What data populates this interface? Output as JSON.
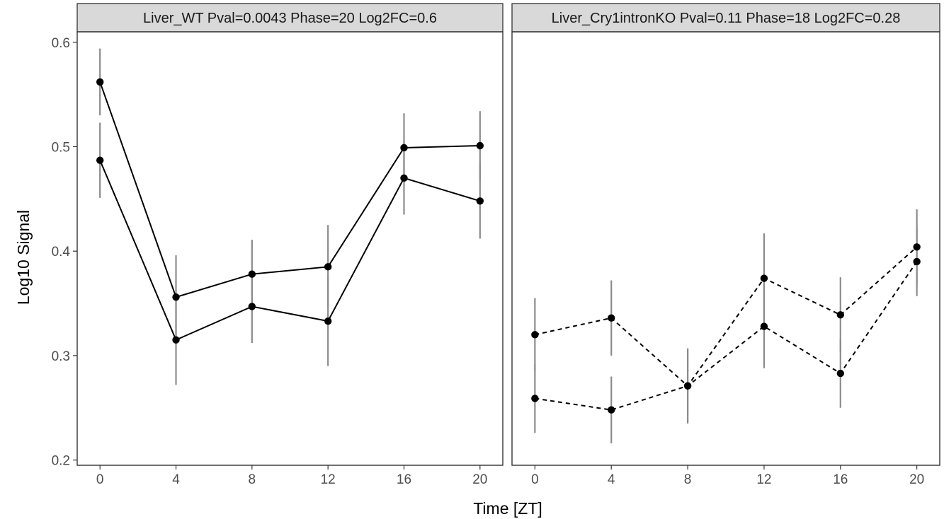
{
  "chart_data": {
    "type": "line",
    "xlabel": "Time [ZT]",
    "ylabel": "Log10 Signal",
    "x_ticks": [
      0,
      4,
      8,
      12,
      16,
      20
    ],
    "y_ticks": [
      0.2,
      0.3,
      0.4,
      0.5,
      0.6
    ],
    "y_tick_labels": [
      "0.2",
      "0.3",
      "0.4",
      "0.5",
      "0.6"
    ],
    "xlim": [
      -1.2,
      21.2
    ],
    "ylim": [
      0.195,
      0.61
    ],
    "grid": false,
    "legend": "none",
    "colors": {
      "line": "#000000",
      "point": "#000000",
      "errorbar": "#8c8c8c",
      "strip_fill": "#d9d9d9",
      "panel_border": "#333333"
    },
    "panels": [
      {
        "strip": "Liver_WT Pval=0.0043 Phase=20 Log2FC=0.6",
        "line_style": "solid",
        "series": [
          {
            "x": [
              0,
              4,
              8,
              12,
              16,
              20
            ],
            "y": [
              0.562,
              0.356,
              0.378,
              0.385,
              0.499,
              0.501
            ],
            "err": [
              0.032,
              0.04,
              0.033,
              0.04,
              0.033,
              0.033
            ]
          },
          {
            "x": [
              0,
              4,
              8,
              12,
              16,
              20
            ],
            "y": [
              0.487,
              0.315,
              0.347,
              0.333,
              0.47,
              0.448
            ],
            "err": [
              0.036,
              0.043,
              0.035,
              0.043,
              0.035,
              0.036
            ]
          }
        ]
      },
      {
        "strip": "Liver_Cry1intronKO Pval=0.11 Phase=18 Log2FC=0.28",
        "line_style": "dashed",
        "series": [
          {
            "x": [
              0,
              4,
              8,
              12,
              16,
              20
            ],
            "y": [
              0.32,
              0.336,
              0.271,
              0.374,
              0.339,
              0.404
            ],
            "err": [
              0.035,
              0.036,
              0.036,
              0.043,
              0.036,
              0.036
            ]
          },
          {
            "x": [
              0,
              4,
              8,
              12,
              16,
              20
            ],
            "y": [
              0.259,
              0.248,
              0.271,
              0.328,
              0.283,
              0.39
            ],
            "err": [
              0.033,
              0.032,
              0.035,
              0.04,
              0.033,
              0.033
            ]
          }
        ]
      }
    ]
  }
}
